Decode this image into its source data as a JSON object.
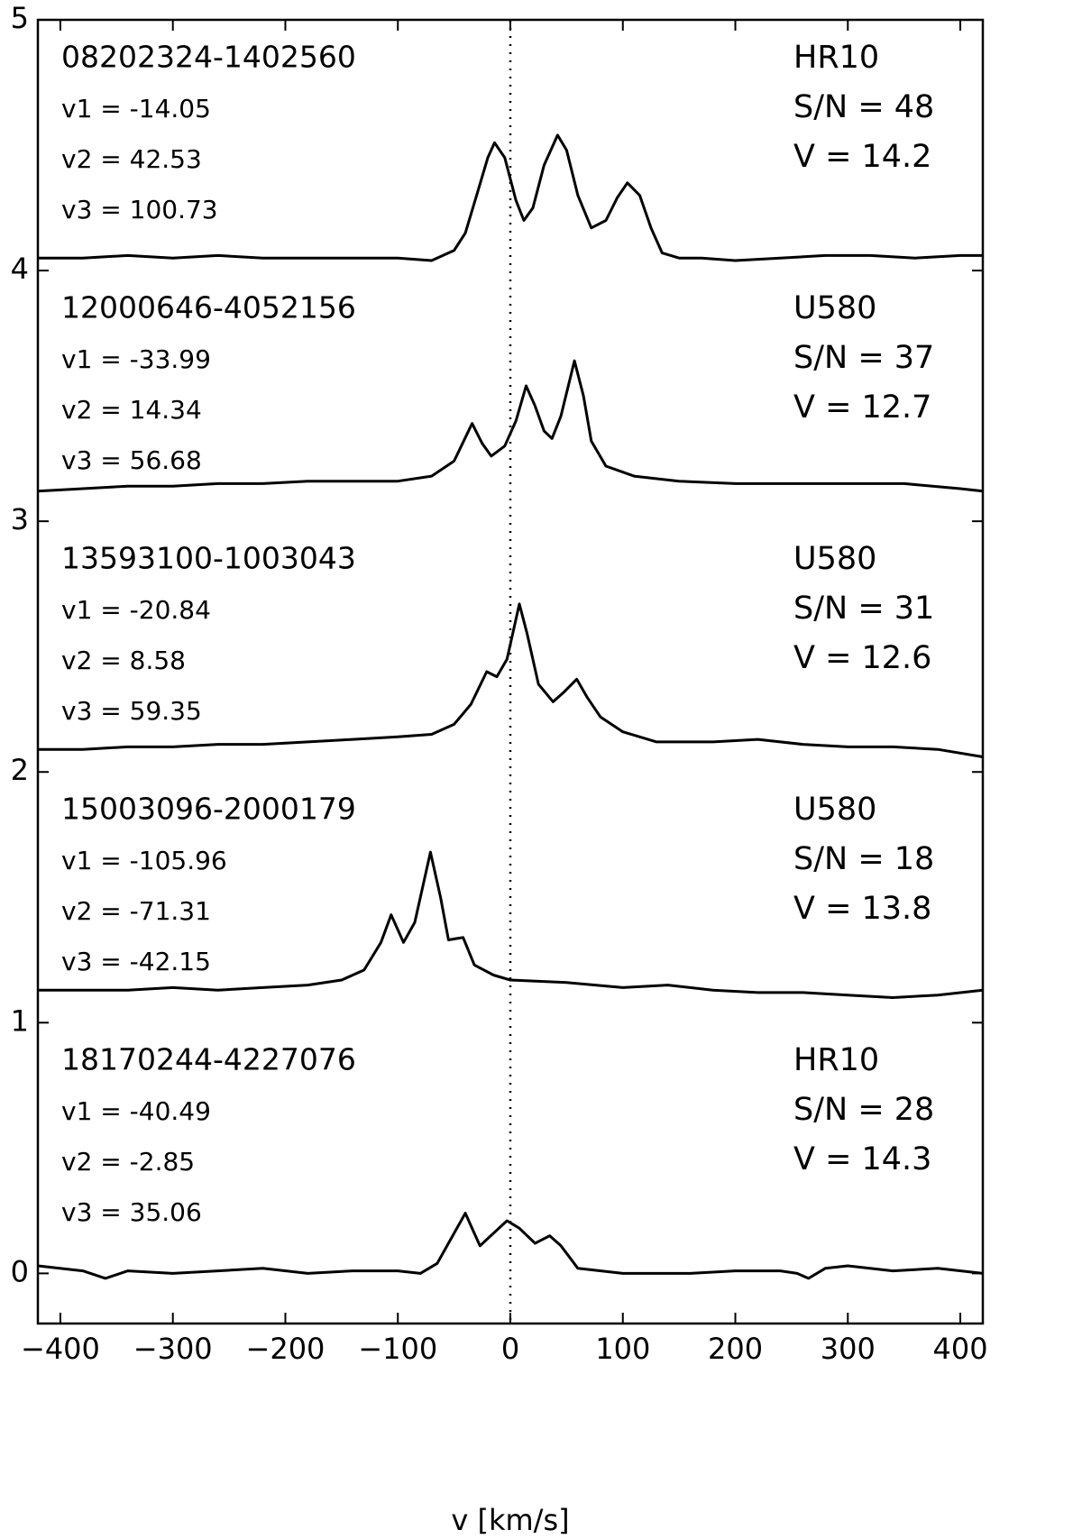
{
  "chart_data": {
    "type": "line",
    "x_label": "v [km/s]",
    "xlim": [
      -420,
      420
    ],
    "ylim": [
      -0.2,
      5
    ],
    "xticks": [
      {
        "value": -400,
        "label": "−400"
      },
      {
        "value": -300,
        "label": "−300"
      },
      {
        "value": -200,
        "label": "−200"
      },
      {
        "value": -100,
        "label": "−100"
      },
      0,
      100,
      200,
      300,
      400
    ],
    "yticks": [
      0,
      1,
      2,
      3,
      4,
      5
    ],
    "vline": 0,
    "color": "#000000",
    "series": [
      {
        "name": "08202324-1402560",
        "velocities": [
          "v1 = -14.05",
          "v2 = 42.53",
          "v3 = 100.73"
        ],
        "info": [
          "HR10",
          "S/N = 48",
          "V = 14.2"
        ],
        "x": [
          -420,
          -380,
          -340,
          -300,
          -260,
          -220,
          -180,
          -140,
          -100,
          -70,
          -50,
          -40,
          -30,
          -20,
          -14,
          -5,
          5,
          12,
          20,
          30,
          42,
          50,
          60,
          72,
          85,
          95,
          104,
          115,
          125,
          135,
          150,
          170,
          200,
          240,
          280,
          320,
          360,
          400,
          420
        ],
        "values": [
          4.05,
          4.05,
          4.06,
          4.05,
          4.06,
          4.05,
          4.05,
          4.05,
          4.05,
          4.04,
          4.08,
          4.15,
          4.3,
          4.45,
          4.51,
          4.45,
          4.28,
          4.2,
          4.25,
          4.42,
          4.54,
          4.48,
          4.3,
          4.17,
          4.2,
          4.29,
          4.35,
          4.3,
          4.17,
          4.07,
          4.05,
          4.05,
          4.04,
          4.05,
          4.06,
          4.06,
          4.05,
          4.06,
          4.06
        ]
      },
      {
        "name": "12000646-4052156",
        "velocities": [
          "v1 = -33.99",
          "v2 = 14.34",
          "v3 = 56.68"
        ],
        "info": [
          "U580",
          "S/N = 37",
          "V = 12.7"
        ],
        "x": [
          -420,
          -380,
          -340,
          -300,
          -260,
          -220,
          -180,
          -140,
          -100,
          -70,
          -50,
          -34,
          -25,
          -17,
          -5,
          5,
          14,
          22,
          30,
          37,
          45,
          57,
          65,
          72,
          85,
          110,
          150,
          200,
          250,
          300,
          350,
          400,
          420
        ],
        "values": [
          3.12,
          3.13,
          3.14,
          3.14,
          3.15,
          3.15,
          3.16,
          3.16,
          3.16,
          3.18,
          3.24,
          3.39,
          3.31,
          3.26,
          3.3,
          3.4,
          3.54,
          3.46,
          3.36,
          3.33,
          3.42,
          3.64,
          3.5,
          3.32,
          3.22,
          3.18,
          3.16,
          3.15,
          3.15,
          3.15,
          3.15,
          3.13,
          3.12
        ]
      },
      {
        "name": "13593100-1003043",
        "velocities": [
          "v1 = -20.84",
          "v2 = 8.58",
          "v3 = 59.35"
        ],
        "info": [
          "U580",
          "S/N = 31",
          "V = 12.6"
        ],
        "x": [
          -420,
          -380,
          -340,
          -300,
          -260,
          -220,
          -180,
          -140,
          -100,
          -70,
          -50,
          -35,
          -21,
          -12,
          -3,
          8,
          15,
          25,
          38,
          48,
          59,
          68,
          80,
          100,
          130,
          180,
          220,
          260,
          300,
          340,
          380,
          420
        ],
        "values": [
          2.09,
          2.09,
          2.1,
          2.1,
          2.11,
          2.11,
          2.12,
          2.13,
          2.14,
          2.15,
          2.19,
          2.27,
          2.4,
          2.38,
          2.45,
          2.67,
          2.55,
          2.35,
          2.28,
          2.32,
          2.37,
          2.3,
          2.22,
          2.16,
          2.12,
          2.12,
          2.13,
          2.11,
          2.1,
          2.1,
          2.09,
          2.06
        ]
      },
      {
        "name": "15003096-2000179",
        "velocities": [
          "v1 = -105.96",
          "v2 = -71.31",
          "v3 = -42.15"
        ],
        "info": [
          "U580",
          "S/N = 18",
          "V = 13.8"
        ],
        "x": [
          -420,
          -380,
          -340,
          -300,
          -260,
          -220,
          -180,
          -150,
          -130,
          -115,
          -106,
          -95,
          -85,
          -71,
          -62,
          -55,
          -42,
          -32,
          -15,
          0,
          50,
          100,
          140,
          180,
          220,
          260,
          300,
          340,
          380,
          420
        ],
        "values": [
          1.13,
          1.13,
          1.13,
          1.14,
          1.13,
          1.14,
          1.15,
          1.17,
          1.21,
          1.32,
          1.43,
          1.32,
          1.4,
          1.68,
          1.5,
          1.33,
          1.34,
          1.23,
          1.19,
          1.17,
          1.16,
          1.14,
          1.15,
          1.13,
          1.12,
          1.12,
          1.11,
          1.1,
          1.11,
          1.13
        ]
      },
      {
        "name": "18170244-4227076",
        "velocities": [
          "v1 = -40.49",
          "v2 = -2.85",
          "v3 = 35.06"
        ],
        "info": [
          "HR10",
          "S/N = 28",
          "V = 14.3"
        ],
        "x": [
          -420,
          -380,
          -360,
          -340,
          -300,
          -260,
          -220,
          -180,
          -140,
          -100,
          -80,
          -65,
          -50,
          -40,
          -33,
          -27,
          -15,
          -3,
          8,
          22,
          35,
          45,
          60,
          100,
          160,
          200,
          240,
          255,
          265,
          280,
          300,
          340,
          380,
          420
        ],
        "values": [
          0.03,
          0.01,
          -0.02,
          0.01,
          0.0,
          0.01,
          0.02,
          0.0,
          0.01,
          0.01,
          0.0,
          0.04,
          0.16,
          0.24,
          0.17,
          0.11,
          0.16,
          0.21,
          0.18,
          0.12,
          0.15,
          0.11,
          0.02,
          0.0,
          0.0,
          0.01,
          0.01,
          0.0,
          -0.02,
          0.02,
          0.03,
          0.01,
          0.02,
          0.0
        ]
      }
    ]
  }
}
